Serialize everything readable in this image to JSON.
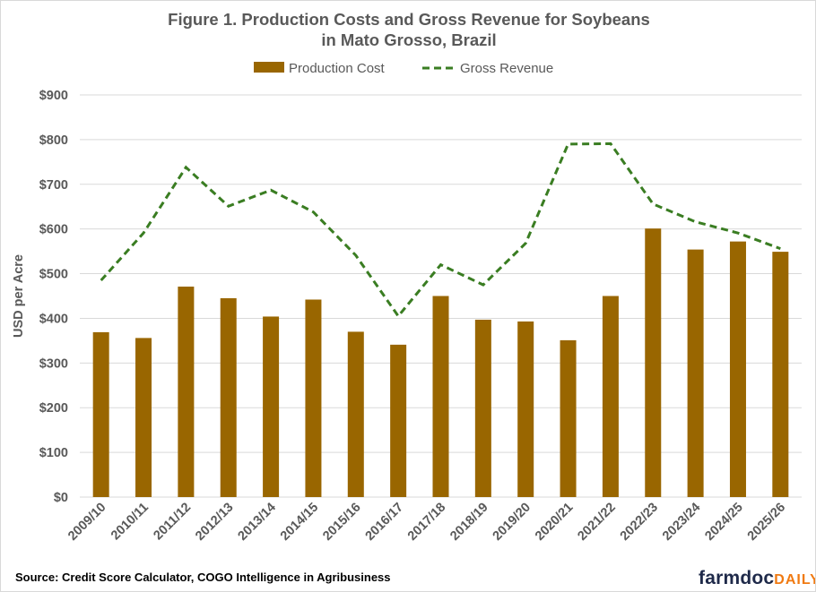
{
  "chart_data": {
    "type": "bar",
    "title": "Figure 1. Production Costs and Gross Revenue for Soybeans",
    "title_line2": "in Mato Grosso, Brazil",
    "xlabel": "",
    "ylabel": "USD per Acre",
    "ylim": [
      0,
      900
    ],
    "yticks": [
      "$0",
      "$100",
      "$200",
      "$300",
      "$400",
      "$500",
      "$600",
      "$700",
      "$800",
      "$900"
    ],
    "ytick_values": [
      0,
      100,
      200,
      300,
      400,
      500,
      600,
      700,
      800,
      900
    ],
    "grid": true,
    "legend_placement": "top",
    "categories": [
      "2009/10",
      "2010/11",
      "2011/12",
      "2012/13",
      "2013/14",
      "2014/15",
      "2015/16",
      "2016/17",
      "2017/18",
      "2018/19",
      "2019/20",
      "2020/21",
      "2021/22",
      "2022/23",
      "2023/24",
      "2024/25",
      "2025/26"
    ],
    "series": [
      {
        "name": "Production Cost",
        "type": "bar",
        "color": "#996600",
        "values": [
          369,
          356,
          471,
          445,
          404,
          442,
          370,
          341,
          450,
          397,
          393,
          351,
          450,
          601,
          554,
          572,
          549
        ]
      },
      {
        "name": "Gross Revenue",
        "type": "line",
        "style": "dashed",
        "color": "#3a7d22",
        "values": [
          485,
          591,
          738,
          651,
          687,
          638,
          541,
          405,
          520,
          475,
          568,
          790,
          791,
          656,
          616,
          591,
          556
        ]
      }
    ]
  },
  "source": "Source: Credit Score Calculator, COGO Intelligence in Agribusiness",
  "logo": {
    "main": "farmdoc",
    "accent": "DAILY"
  }
}
